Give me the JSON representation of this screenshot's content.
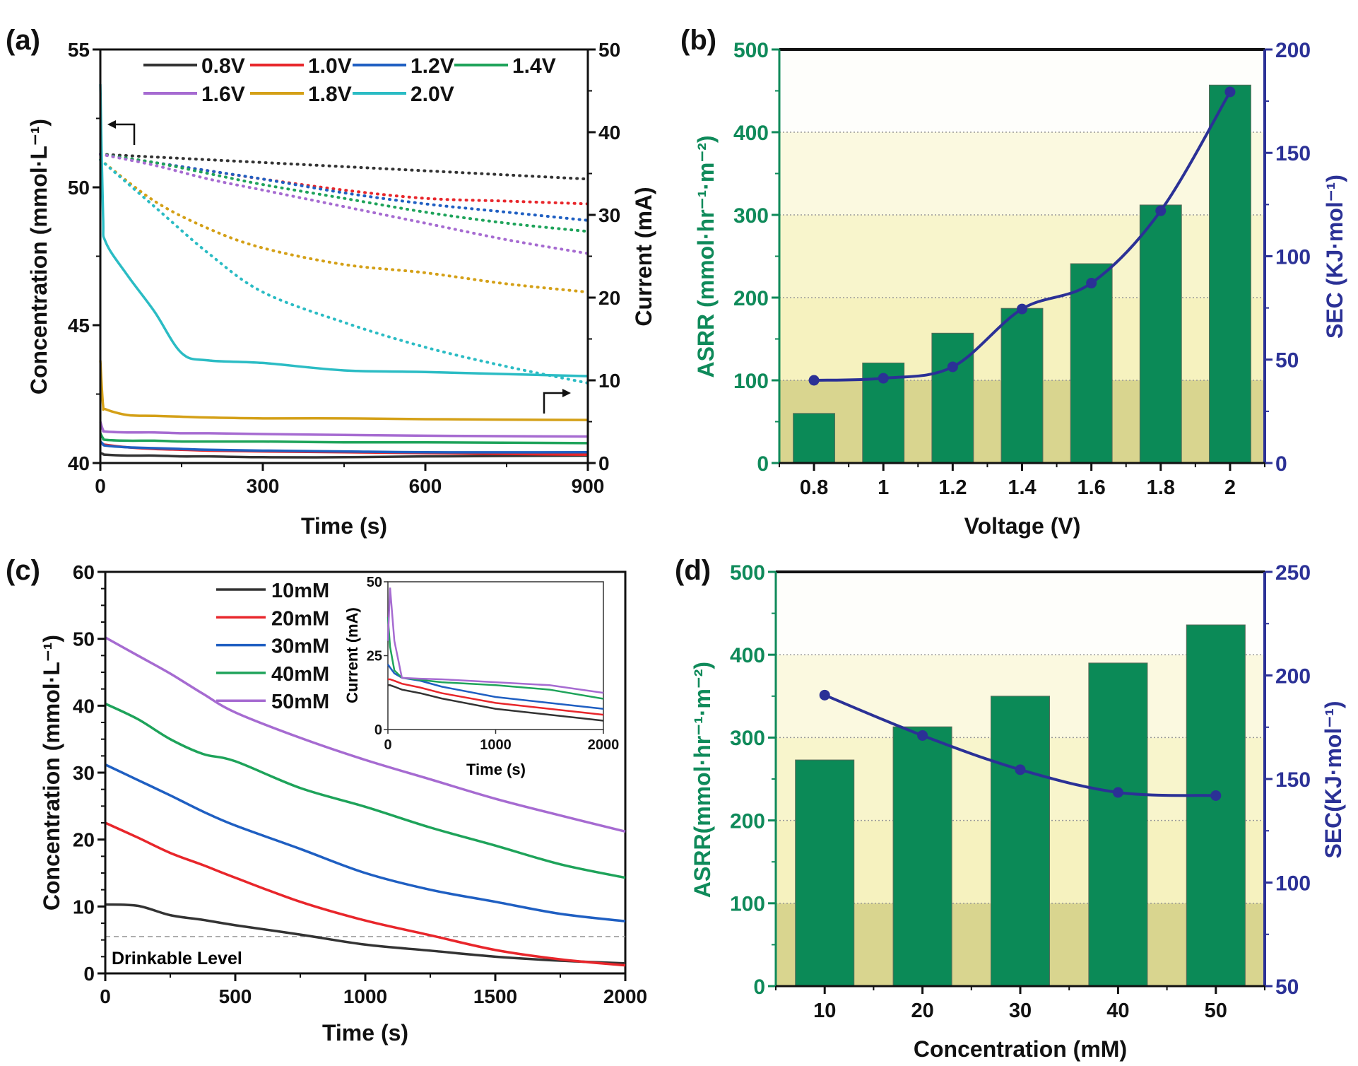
{
  "figure": {
    "panel_labels": [
      "(a)",
      "(b)",
      "(c)",
      "(d)"
    ]
  },
  "colors": {
    "0.8V": "#333333",
    "1.0V": "#e8262b",
    "1.2V": "#1f5fc2",
    "1.4V": "#1ea35a",
    "1.6V": "#a66bd1",
    "1.8V": "#d4a017",
    "2.0V": "#2bbcc4",
    "bar": "#0b8a57",
    "sec_line": "#2b3196",
    "asrr_axis": "#0f8a5a",
    "sec_axis": "#2b3196"
  },
  "chart_data": [
    {
      "panel": "(a)",
      "type": "line",
      "xlabel": "Time (s)",
      "ylabel": "Concentration (mmol·L⁻¹)",
      "y2label": "Current (mA)",
      "xlim": [
        0,
        900
      ],
      "ylim": [
        40,
        55
      ],
      "y2lim": [
        0,
        50
      ],
      "xticks": [
        0,
        300,
        600,
        900
      ],
      "yticks": [
        40,
        45,
        50,
        55
      ],
      "y2ticks": [
        0,
        10,
        20,
        30,
        40,
        50
      ],
      "legend_position": "top",
      "notes": "dotted = concentration (left axis), solid = current (right axis)",
      "conc_x": [
        0,
        100,
        200,
        300,
        450,
        600,
        750,
        900
      ],
      "current_x": [
        0,
        5,
        10,
        50,
        100,
        150,
        200,
        300,
        450,
        600,
        900
      ],
      "series": [
        {
          "name": "0.8V",
          "concentration": [
            51.2,
            51.1,
            51.0,
            50.9,
            50.75,
            50.6,
            50.45,
            50.3
          ],
          "current": [
            1.2,
            1.1,
            1.0,
            0.9,
            0.9,
            0.8,
            0.8,
            0.7,
            0.7,
            0.8,
            0.9
          ]
        },
        {
          "name": "1.0V",
          "concentration": [
            51.2,
            50.9,
            50.6,
            50.3,
            49.9,
            49.6,
            49.5,
            49.4
          ],
          "current": [
            2.4,
            2.3,
            2.2,
            1.9,
            1.7,
            1.6,
            1.5,
            1.4,
            1.3,
            1.2,
            1.0
          ]
        },
        {
          "name": "1.2V",
          "concentration": [
            51.2,
            50.9,
            50.6,
            50.3,
            49.8,
            49.4,
            49.1,
            48.8
          ],
          "current": [
            2.6,
            2.3,
            2.1,
            1.9,
            1.8,
            1.7,
            1.6,
            1.5,
            1.4,
            1.3,
            1.3
          ]
        },
        {
          "name": "1.4V",
          "concentration": [
            51.2,
            50.9,
            50.5,
            50.1,
            49.6,
            49.1,
            48.7,
            48.4
          ],
          "current": [
            3.6,
            3.0,
            2.8,
            2.7,
            2.7,
            2.6,
            2.6,
            2.6,
            2.5,
            2.5,
            2.4
          ]
        },
        {
          "name": "1.6V",
          "concentration": [
            51.2,
            50.8,
            50.3,
            49.9,
            49.3,
            48.7,
            48.1,
            47.6
          ],
          "current": [
            5.0,
            4.0,
            3.8,
            3.7,
            3.7,
            3.6,
            3.6,
            3.5,
            3.4,
            3.3,
            3.2
          ]
        },
        {
          "name": "1.8V",
          "concentration": [
            51.0,
            49.5,
            48.5,
            47.8,
            47.2,
            46.9,
            46.5,
            46.2
          ],
          "current": [
            12.4,
            7.0,
            6.5,
            5.8,
            5.7,
            5.6,
            5.5,
            5.4,
            5.4,
            5.3,
            5.2
          ]
        },
        {
          "name": "2.0V",
          "concentration": [
            51.0,
            49.3,
            47.6,
            46.2,
            45.1,
            44.2,
            43.5,
            42.9
          ],
          "current": [
            45.8,
            30.0,
            26.7,
            22.7,
            18.3,
            13.3,
            12.4,
            12.1,
            11.2,
            11.0,
            10.5
          ]
        }
      ]
    },
    {
      "panel": "(b)",
      "type": "bar+line",
      "xlabel": "Voltage (V)",
      "ylabel": "ASRR (mmol·hr⁻¹·m⁻²)",
      "y2label": "SEC (KJ·mol⁻¹)",
      "categories": [
        "0.8",
        "1",
        "1.2",
        "1.4",
        "1.6",
        "1.8",
        "2"
      ],
      "ylim": [
        0,
        500
      ],
      "y2lim": [
        0,
        200
      ],
      "yticks": [
        0,
        100,
        200,
        300,
        400,
        500
      ],
      "y2ticks": [
        0,
        50,
        100,
        150,
        200
      ],
      "grid": true,
      "series": [
        {
          "name": "ASRR",
          "type": "bar",
          "axis": "left",
          "values": [
            60,
            121,
            157,
            187,
            241,
            312,
            457
          ]
        },
        {
          "name": "SEC",
          "type": "line",
          "axis": "right",
          "values": [
            40,
            41,
            46.5,
            74.5,
            87,
            122,
            179.5
          ]
        }
      ]
    },
    {
      "panel": "(c)",
      "type": "line",
      "xlabel": "Time (s)",
      "ylabel": "Concentration (mmol·L⁻¹)",
      "xlim": [
        0,
        2000
      ],
      "ylim": [
        0,
        60
      ],
      "xticks": [
        0,
        500,
        1000,
        1500,
        2000
      ],
      "yticks": [
        0,
        10,
        20,
        30,
        40,
        50,
        60
      ],
      "legend_position": "top-center",
      "annotation": {
        "text": "Drinkable Level",
        "y": 5.5
      },
      "x": [
        0,
        125,
        250,
        375,
        500,
        750,
        1000,
        1250,
        1500,
        1750,
        2000
      ],
      "series": [
        {
          "name": "10mM",
          "color": "#333333",
          "values": [
            10.3,
            10.1,
            8.7,
            8.0,
            7.2,
            5.8,
            4.3,
            3.4,
            2.5,
            1.9,
            1.5
          ]
        },
        {
          "name": "20mM",
          "color": "#e8262b",
          "values": [
            22.5,
            20.3,
            18.0,
            16.2,
            14.3,
            10.7,
            7.9,
            5.7,
            3.5,
            2.1,
            1.2
          ]
        },
        {
          "name": "30mM",
          "color": "#1f5fc2",
          "values": [
            31.2,
            28.9,
            26.6,
            24.2,
            22.1,
            18.6,
            15.0,
            12.5,
            10.7,
            8.9,
            7.8
          ]
        },
        {
          "name": "40mM",
          "color": "#1ea35a",
          "values": [
            40.3,
            38.0,
            35.0,
            32.8,
            31.7,
            27.7,
            24.9,
            21.8,
            19.1,
            16.3,
            14.3
          ]
        },
        {
          "name": "50mM",
          "color": "#a66bd1",
          "values": [
            50.2,
            47.5,
            44.8,
            41.8,
            39.0,
            35.2,
            31.9,
            29.0,
            26.1,
            23.6,
            21.2
          ]
        }
      ],
      "inset": {
        "type": "line",
        "xlabel": "Time (s)",
        "ylabel": "Current (mA)",
        "xlim": [
          0,
          2000
        ],
        "ylim": [
          0,
          50
        ],
        "xticks": [
          0,
          1000,
          2000
        ],
        "yticks": [
          0,
          25,
          50
        ],
        "x": [
          0,
          20,
          60,
          130,
          300,
          500,
          1000,
          1500,
          2000
        ],
        "series": [
          {
            "name": "10mM",
            "values": [
              15,
              15,
              14.5,
              13.5,
              12.3,
              10.5,
              7.0,
              5.0,
              3.0
            ]
          },
          {
            "name": "20mM",
            "values": [
              17,
              17,
              16.5,
              15.5,
              14.2,
              12.3,
              9.0,
              7.0,
              5.0
            ]
          },
          {
            "name": "30mM",
            "values": [
              22,
              21,
              19,
              17.5,
              16.5,
              14.5,
              11.0,
              9.0,
              7.0
            ]
          },
          {
            "name": "40mM",
            "values": [
              38,
              28,
              20,
              17.5,
              16.8,
              16.0,
              15.0,
              13.5,
              10.4
            ]
          },
          {
            "name": "50mM",
            "values": [
              30,
              48,
              30,
              17.5,
              17.2,
              17.0,
              16.0,
              15.0,
              12.4
            ]
          }
        ]
      }
    },
    {
      "panel": "(d)",
      "type": "bar+line",
      "xlabel": "Concentration (mM)",
      "ylabel": "ASRR(mmol·hr⁻¹·m⁻²)",
      "y2label": "SEC(KJ·mol⁻¹)",
      "categories": [
        "10",
        "20",
        "30",
        "40",
        "50"
      ],
      "ylim": [
        0,
        500
      ],
      "y2lim": [
        50,
        250
      ],
      "yticks": [
        0,
        100,
        200,
        300,
        400,
        500
      ],
      "y2ticks": [
        50,
        100,
        150,
        200,
        250
      ],
      "grid": true,
      "series": [
        {
          "name": "ASRR",
          "type": "bar",
          "axis": "left",
          "values": [
            273,
            313,
            350,
            390,
            436
          ]
        },
        {
          "name": "SEC",
          "type": "line",
          "axis": "right",
          "values": [
            190.5,
            171,
            154.5,
            143.5,
            142
          ]
        }
      ]
    }
  ]
}
